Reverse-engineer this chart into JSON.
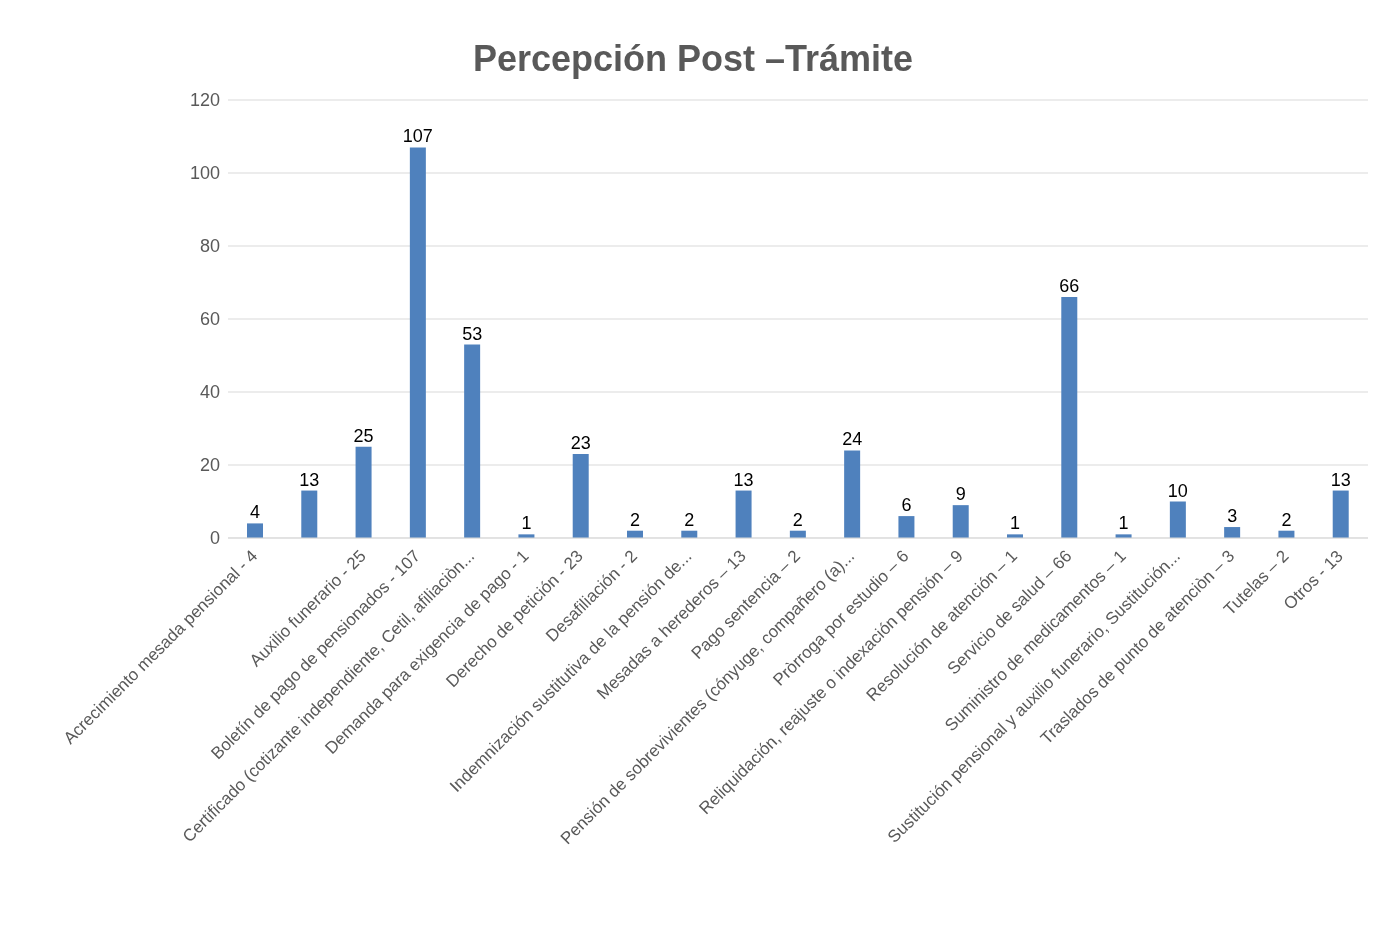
{
  "chart_data": {
    "type": "bar",
    "title": "Percepción Post –Trámite",
    "categories": [
      "Acrecimiento mesada pensional - 4",
      null,
      "Auxilio funerario - 25",
      "Boletín de pago de pensionados - 107",
      "Certificado (cotizante independiente, Cetil, afiliaciòn...",
      "Demanda para exigencia de pago - 1",
      "Derecho de petición - 23",
      "Desafiliación - 2",
      "Indemnización sustitutiva de la pensión de...",
      "Mesadas a herederos – 13",
      "Pago sentencia – 2",
      "Pensión de sobrevivientes (cónyuge, compañero (a)...",
      "Pròrroga por estudio – 6",
      "Reliquidación, reajuste o indexación pensión – 9",
      "Resolución de atención – 1",
      "Servicio de salud – 66",
      "Suministro de medicamentos – 1",
      "Sustitución pensional y auxilio funerario, Sustitución...",
      "Traslados de punto de atenciòn – 3",
      "Tutelas – 2",
      "Otros - 13"
    ],
    "values": [
      4,
      13,
      25,
      107,
      53,
      1,
      23,
      2,
      2,
      13,
      2,
      24,
      6,
      9,
      1,
      66,
      1,
      10,
      3,
      2,
      13
    ],
    "color": "#4f81bd",
    "ylim": [
      0,
      120
    ],
    "yticks": [
      0,
      20,
      40,
      60,
      80,
      100,
      120
    ],
    "grid": "y",
    "legend": false,
    "data_labels": true
  }
}
